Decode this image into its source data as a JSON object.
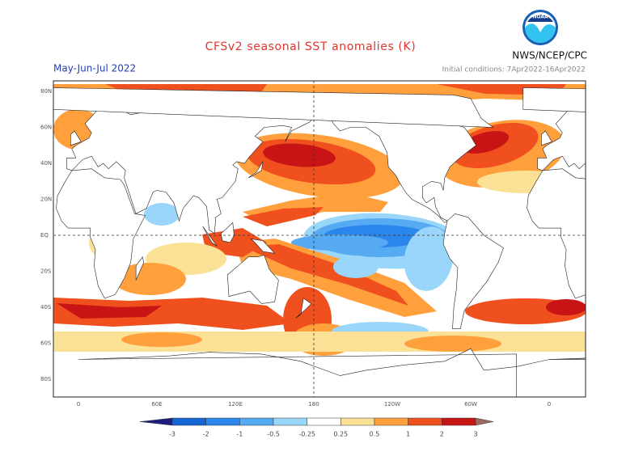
{
  "header": {
    "title": "CFSv2 seasonal SST anomalies (K)",
    "logo": "NOAA",
    "agency": "NWS/NCEP/CPC",
    "period": "May-Jun-Jul 2022",
    "initial_conditions": "Initial conditions: 7Apr2022-16Apr2022"
  },
  "map": {
    "lat_labels": [
      "80N",
      "60N",
      "40N",
      "20N",
      "EQ",
      "20S",
      "40S",
      "60S",
      "80S"
    ],
    "lon_labels": [
      "0",
      "60E",
      "120E",
      "180",
      "120W",
      "60W",
      "0"
    ]
  },
  "colorbar": {
    "levels": [
      -3,
      -2,
      -1,
      -0.5,
      -0.25,
      0.25,
      0.5,
      1,
      2,
      3
    ],
    "colors": [
      "#1e1e82",
      "#1466d2",
      "#2a86ea",
      "#56aaf2",
      "#9ad6fa",
      "#ffffff",
      "#fae196",
      "#ffa03c",
      "#f0501e",
      "#c81414",
      "#9c6a5e"
    ]
  }
}
